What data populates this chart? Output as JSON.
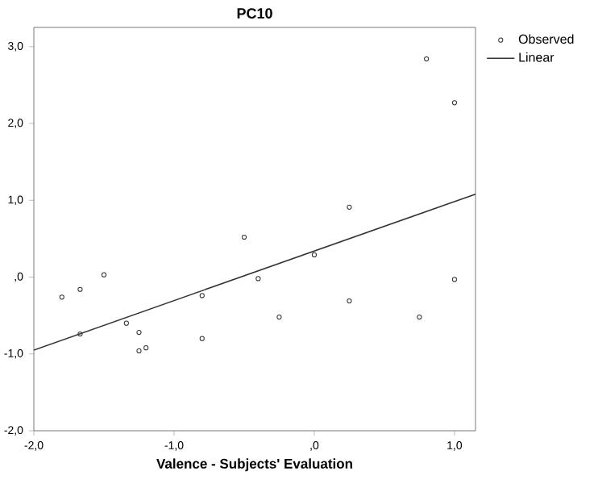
{
  "chart_data": {
    "type": "scatter",
    "title": "PC10",
    "xlabel": "Valence - Subjects' Evaluation",
    "xlim": [
      -2.0,
      1.15
    ],
    "ylim": [
      -2.0,
      3.25
    ],
    "xticks": [
      {
        "value": -2,
        "label": "-2,0"
      },
      {
        "value": -1,
        "label": "-1,0"
      },
      {
        "value": 0,
        "label": ",0"
      },
      {
        "value": 1,
        "label": "1,0"
      }
    ],
    "yticks": [
      {
        "value": -2,
        "label": "-2,0"
      },
      {
        "value": -1,
        "label": "-1,0"
      },
      {
        "value": 0,
        "label": ",0"
      },
      {
        "value": 1,
        "label": "1,0"
      },
      {
        "value": 2,
        "label": "2,0"
      },
      {
        "value": 3,
        "label": "3,0"
      }
    ],
    "grid": false,
    "legend": "right",
    "series": [
      {
        "name": "Observed",
        "marker": "circle",
        "color": "#333333",
        "x": [
          -1.8,
          -1.67,
          -1.5,
          -1.67,
          -1.34,
          -1.25,
          -1.25,
          -1.2,
          -0.8,
          -0.8,
          -0.5,
          -0.4,
          -0.25,
          0.0,
          0.25,
          0.25,
          0.75,
          1.0,
          0.8,
          1.0
        ],
        "values": [
          -0.26,
          -0.16,
          0.03,
          -0.74,
          -0.6,
          -0.72,
          -0.96,
          -0.92,
          -0.24,
          -0.8,
          0.52,
          -0.02,
          -0.52,
          0.29,
          -0.31,
          0.91,
          -0.52,
          -0.03,
          2.84,
          2.27
        ]
      },
      {
        "name": "Linear",
        "type": "line",
        "line_style": "solid",
        "color": "#333333",
        "x": [
          -2.0,
          1.15
        ],
        "values": [
          -0.95,
          1.08
        ]
      }
    ]
  }
}
